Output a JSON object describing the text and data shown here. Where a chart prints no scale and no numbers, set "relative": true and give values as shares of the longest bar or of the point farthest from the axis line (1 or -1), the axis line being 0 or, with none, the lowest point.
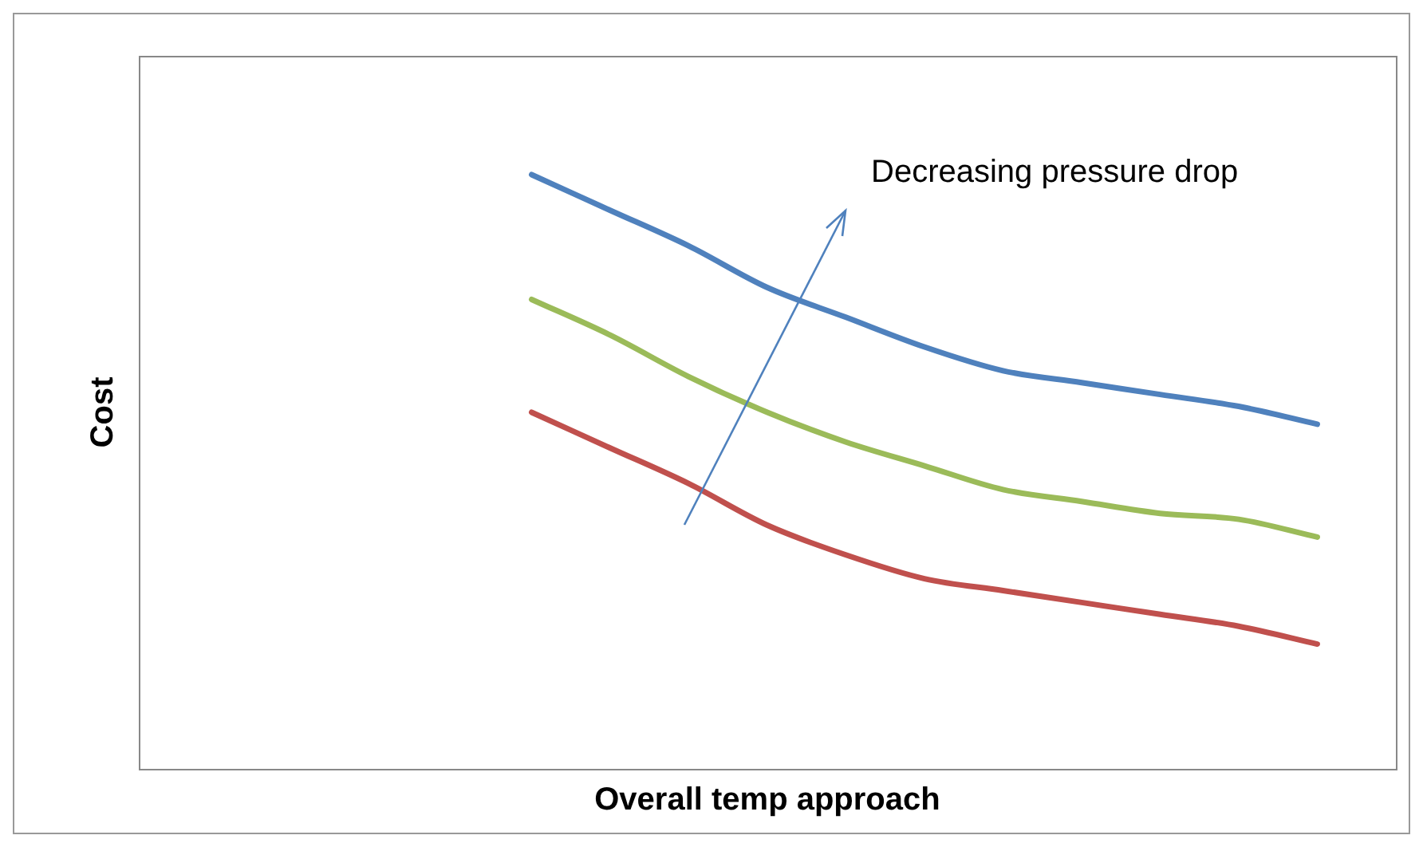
{
  "chart_data": {
    "type": "line",
    "relative": true,
    "xlabel": "Overall temp approach",
    "ylabel": "Cost",
    "annotations": [
      "Decreasing pressure drop"
    ],
    "grid": false,
    "legend": false,
    "marker": "none",
    "line_style": "solid",
    "categories": [
      null,
      null,
      null,
      null,
      null,
      null,
      null,
      null,
      null,
      null,
      null,
      null,
      null,
      null,
      null,
      null,
      null
    ],
    "series": [
      {
        "color": "#4f81bd",
        "values": [
          null,
          null,
          null,
          null,
          null,
          1,
          0.94,
          0.88,
          0.81,
          0.76,
          0.71,
          0.67,
          0.65,
          0.63,
          0.61,
          0.58,
          null
        ]
      },
      {
        "color": "#9bbb59",
        "values": [
          null,
          null,
          null,
          null,
          null,
          0.79,
          0.73,
          0.66,
          0.6,
          0.55,
          0.51,
          0.47,
          0.45,
          0.43,
          0.42,
          0.39,
          null
        ]
      },
      {
        "color": "#c0504d",
        "values": [
          null,
          null,
          null,
          null,
          null,
          0.6,
          0.54,
          0.48,
          0.41,
          0.36,
          0.32,
          0.3,
          0.28,
          0.26,
          0.24,
          0.21,
          null
        ]
      }
    ]
  }
}
